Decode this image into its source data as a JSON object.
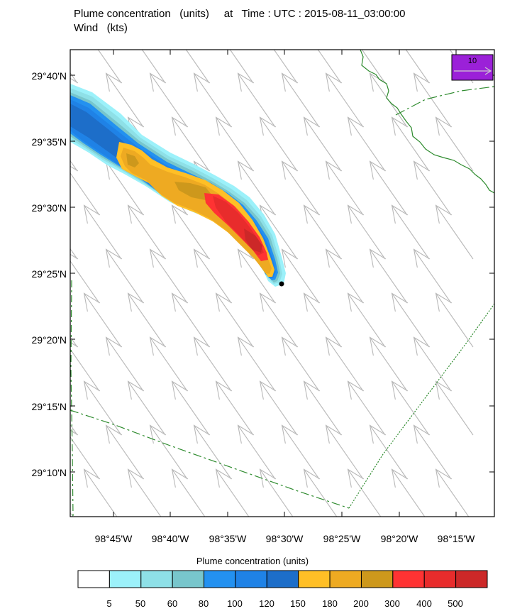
{
  "title": {
    "line1": "Plume concentration   (units)     at   Time : UTC : 2015-08-11_03:00:00",
    "line2": "Wind   (kts)"
  },
  "map": {
    "lat_labels": [
      "29°40'N",
      "29°35'N",
      "29°30'N",
      "29°25'N",
      "29°20'N",
      "29°15'N",
      "29°10'N"
    ],
    "lon_labels": [
      "98°45'W",
      "98°40'W",
      "98°35'W",
      "98°30'W",
      "98°25'W",
      "98°20'W",
      "98°15'W"
    ],
    "colors": {
      "frame": "#000000",
      "wind_arrow": "#b8b8b8",
      "county_line": "#2e8b2e",
      "source": "#000000"
    }
  },
  "legend_vector": {
    "label": "10",
    "color": "#9b21d8"
  },
  "colorbar": {
    "title": "Plume concentration  (units)",
    "labels": [
      "5",
      "50",
      "60",
      "80",
      "100",
      "120",
      "150",
      "180",
      "200",
      "300",
      "400",
      "500"
    ],
    "colors": [
      "#ffffff",
      "#9cf1fa",
      "#8ee0e7",
      "#78c6cc",
      "#2391f0",
      "#1f82e6",
      "#1d6ec9",
      "#ffbf26",
      "#eeaa22",
      "#cd981c",
      "#ff3333",
      "#e82c2c",
      "#cc2828"
    ]
  }
}
